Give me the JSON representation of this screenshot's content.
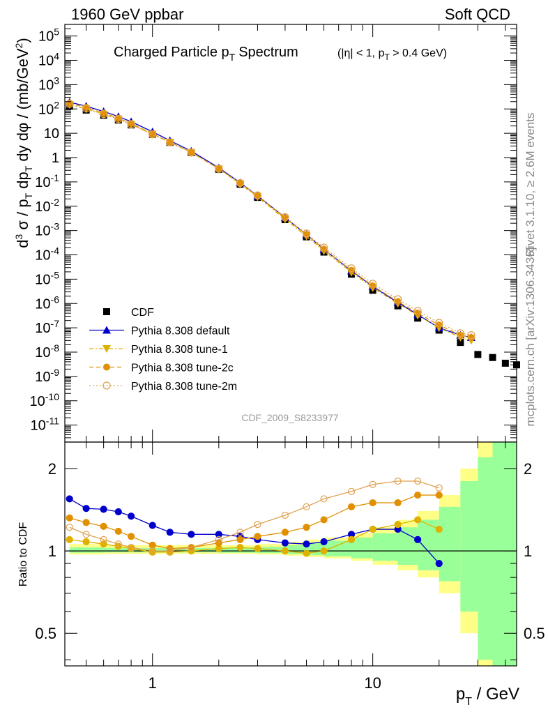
{
  "header": {
    "left": "1960 GeV ppbar",
    "right": "Soft QCD"
  },
  "side": {
    "rivet": "Rivet 3.1.10, ≥ 2.6M events",
    "mcplots": "mcplots.cern.ch [arXiv:1306.3436]"
  },
  "analysis_id": "CDF_2009_S8233977",
  "chart_data": [
    {
      "type": "scatter",
      "panel": "main",
      "title_main": "Charged Particle p",
      "title_sub": "T",
      "title_word": "Spectrum",
      "title_cut_a": "(|η| < 1, p",
      "title_cut_sub": "T",
      "title_cut_b": " > 0.4 GeV)",
      "ylabel": "d³σ / p_T dp_T dy dφ / (mb/GeV²)",
      "xlabel": "p_T / GeV",
      "x_scale": "log",
      "y_scale": "log",
      "xlim": [
        0.4,
        45
      ],
      "ylim": [
        2e-12,
        300000.0
      ],
      "x_ticks": [
        1,
        10
      ],
      "y_ticks": [
        "10^5",
        "10^4",
        "10^3",
        "10^2",
        "10",
        "1",
        "10^-1",
        "10^-2",
        "10^-3",
        "10^-4",
        "10^-5",
        "10^-6",
        "10^-7",
        "10^-8",
        "10^-9",
        "10^-10",
        "10^-11"
      ],
      "legend_position": "lower-left",
      "series": [
        {
          "name": "CDF",
          "color": "#000000",
          "marker": "square",
          "x": [
            0.42,
            0.5,
            0.6,
            0.7,
            0.8,
            1.0,
            1.2,
            1.5,
            2.0,
            2.5,
            3.0,
            4.0,
            5.0,
            6.0,
            8.0,
            10.0,
            13.0,
            16.0,
            20.0,
            25.0,
            30.0,
            35.0,
            40.0,
            45.0
          ],
          "y": [
            130,
            90,
            55,
            35,
            22,
            9,
            4.2,
            1.6,
            0.33,
            0.08,
            0.023,
            0.0028,
            0.00055,
            0.00013,
            1.6e-05,
            3.5e-06,
            8e-07,
            2.5e-07,
            8e-08,
            2.5e-08,
            8e-09,
            6e-09,
            3.5e-09,
            3e-09
          ]
        },
        {
          "name": "Pythia 8.308 default",
          "color": "#0000cc",
          "marker": "triangle-up",
          "line": "solid",
          "x": [
            0.42,
            0.5,
            0.6,
            0.7,
            0.8,
            1.0,
            1.2,
            1.5,
            2.0,
            2.5,
            3.0,
            4.0,
            5.0,
            6.0,
            8.0,
            10.0,
            13.0,
            16.0,
            20.0,
            25.0,
            28.0
          ],
          "y": [
            190,
            130,
            79,
            49,
            30,
            11.5,
            5.0,
            1.85,
            0.38,
            0.093,
            0.027,
            0.0034,
            0.00068,
            0.00017,
            2.2e-05,
            5e-06,
            1.1e-06,
            3.5e-07,
            1e-07,
            5e-08,
            4e-08
          ]
        },
        {
          "name": "Pythia 8.308 tune-1",
          "color": "#e0b000",
          "marker": "triangle-down",
          "line": "dashdot",
          "x": [
            0.42,
            0.5,
            0.6,
            0.7,
            0.8,
            1.0,
            1.2,
            1.5,
            2.0,
            2.5,
            3.0,
            4.0,
            5.0,
            6.0,
            8.0,
            10.0,
            13.0,
            16.0,
            20.0,
            25.0,
            28.0
          ],
          "y": [
            150,
            100,
            60,
            38,
            23,
            9.2,
            4.3,
            1.63,
            0.34,
            0.083,
            0.024,
            0.0029,
            0.00058,
            0.000145,
            1.9e-05,
            4.4e-06,
            1e-06,
            3.2e-07,
            1e-07,
            4e-08,
            3e-08
          ]
        },
        {
          "name": "Pythia 8.308 tune-2c",
          "color": "#e09000",
          "marker": "circle",
          "line": "dashed",
          "x": [
            0.42,
            0.5,
            0.6,
            0.7,
            0.8,
            1.0,
            1.2,
            1.5,
            2.0,
            2.5,
            3.0,
            4.0,
            5.0,
            6.0,
            8.0,
            10.0,
            13.0,
            16.0,
            20.0,
            25.0,
            28.0
          ],
          "y": [
            175,
            116,
            68,
            42,
            25.5,
            9.5,
            4.3,
            1.65,
            0.35,
            0.088,
            0.026,
            0.0033,
            0.00068,
            0.00017,
            2.3e-05,
            5.3e-06,
            1.2e-06,
            4e-07,
            1.3e-07,
            5e-08,
            4e-08
          ]
        },
        {
          "name": "Pythia 8.308 tune-2m",
          "color": "#e0a050",
          "marker": "open-circle",
          "line": "dotted",
          "x": [
            0.42,
            0.5,
            0.6,
            0.7,
            0.8,
            1.0,
            1.2,
            1.5,
            2.0,
            2.5,
            3.0,
            4.0,
            5.0,
            6.0,
            8.0,
            10.0,
            13.0,
            16.0,
            20.0,
            25.0,
            28.0
          ],
          "y": [
            160,
            104,
            61,
            38,
            23,
            9.0,
            4.2,
            1.62,
            0.35,
            0.09,
            0.028,
            0.0036,
            0.00076,
            0.0002,
            2.8e-05,
            6.5e-06,
            1.5e-06,
            5e-07,
            1.6e-07,
            6e-08,
            5e-08
          ]
        }
      ]
    },
    {
      "type": "scatter",
      "panel": "ratio",
      "ylabel": "Ratio to CDF",
      "x_scale": "log",
      "y_scale": "log",
      "xlim": [
        0.4,
        45
      ],
      "ylim": [
        0.38,
        2.5
      ],
      "y_ticks": [
        "0.5",
        "1",
        "2"
      ],
      "x_ticks": [
        "1",
        "10"
      ],
      "reference_line": 1,
      "uncertainty_bands": {
        "inner_color": "#99ff99",
        "outer_color": "#ffff88"
      },
      "series": [
        {
          "name": "Pythia 8.308 default",
          "color": "#0000cc",
          "x": [
            0.42,
            0.5,
            0.6,
            0.7,
            0.8,
            1.0,
            1.2,
            1.5,
            2.0,
            2.5,
            3.0,
            4.0,
            5.0,
            6.0,
            8.0,
            10.0,
            13.0,
            16.0,
            20.0
          ],
          "y": [
            1.55,
            1.43,
            1.42,
            1.39,
            1.34,
            1.24,
            1.17,
            1.15,
            1.15,
            1.13,
            1.1,
            1.07,
            1.06,
            1.08,
            1.15,
            1.2,
            1.2,
            1.1,
            0.9
          ]
        },
        {
          "name": "Pythia 8.308 tune-1",
          "color": "#e0b000",
          "x": [
            0.42,
            0.5,
            0.6,
            0.7,
            0.8,
            1.0,
            1.2,
            1.5,
            2.0,
            2.5,
            3.0,
            4.0,
            5.0,
            6.0,
            8.0,
            10.0,
            13.0,
            16.0,
            20.0
          ],
          "y": [
            1.1,
            1.08,
            1.06,
            1.04,
            1.02,
            0.99,
            0.99,
            1.0,
            1.02,
            1.03,
            1.02,
            1.0,
            0.98,
            1.0,
            1.1,
            1.2,
            1.25,
            1.3,
            1.2
          ]
        },
        {
          "name": "Pythia 8.308 tune-2c",
          "color": "#e09000",
          "x": [
            0.42,
            0.5,
            0.6,
            0.7,
            0.8,
            1.0,
            1.2,
            1.5,
            2.0,
            2.5,
            3.0,
            4.0,
            5.0,
            6.0,
            8.0,
            10.0,
            13.0,
            16.0,
            20.0
          ],
          "y": [
            1.32,
            1.27,
            1.23,
            1.18,
            1.13,
            1.05,
            1.02,
            1.03,
            1.07,
            1.1,
            1.13,
            1.17,
            1.22,
            1.3,
            1.45,
            1.5,
            1.5,
            1.6,
            1.6
          ]
        },
        {
          "name": "Pythia 8.308 tune-2m",
          "color": "#e0a050",
          "x": [
            0.42,
            0.5,
            0.6,
            0.7,
            0.8,
            1.0,
            1.2,
            1.5,
            2.0,
            2.5,
            3.0,
            4.0,
            5.0,
            6.0,
            8.0,
            10.0,
            13.0,
            16.0,
            20.0
          ],
          "y": [
            1.22,
            1.15,
            1.1,
            1.06,
            1.03,
            1.0,
            1.0,
            1.03,
            1.1,
            1.17,
            1.25,
            1.35,
            1.45,
            1.55,
            1.65,
            1.75,
            1.8,
            1.8,
            1.7
          ]
        }
      ]
    }
  ]
}
